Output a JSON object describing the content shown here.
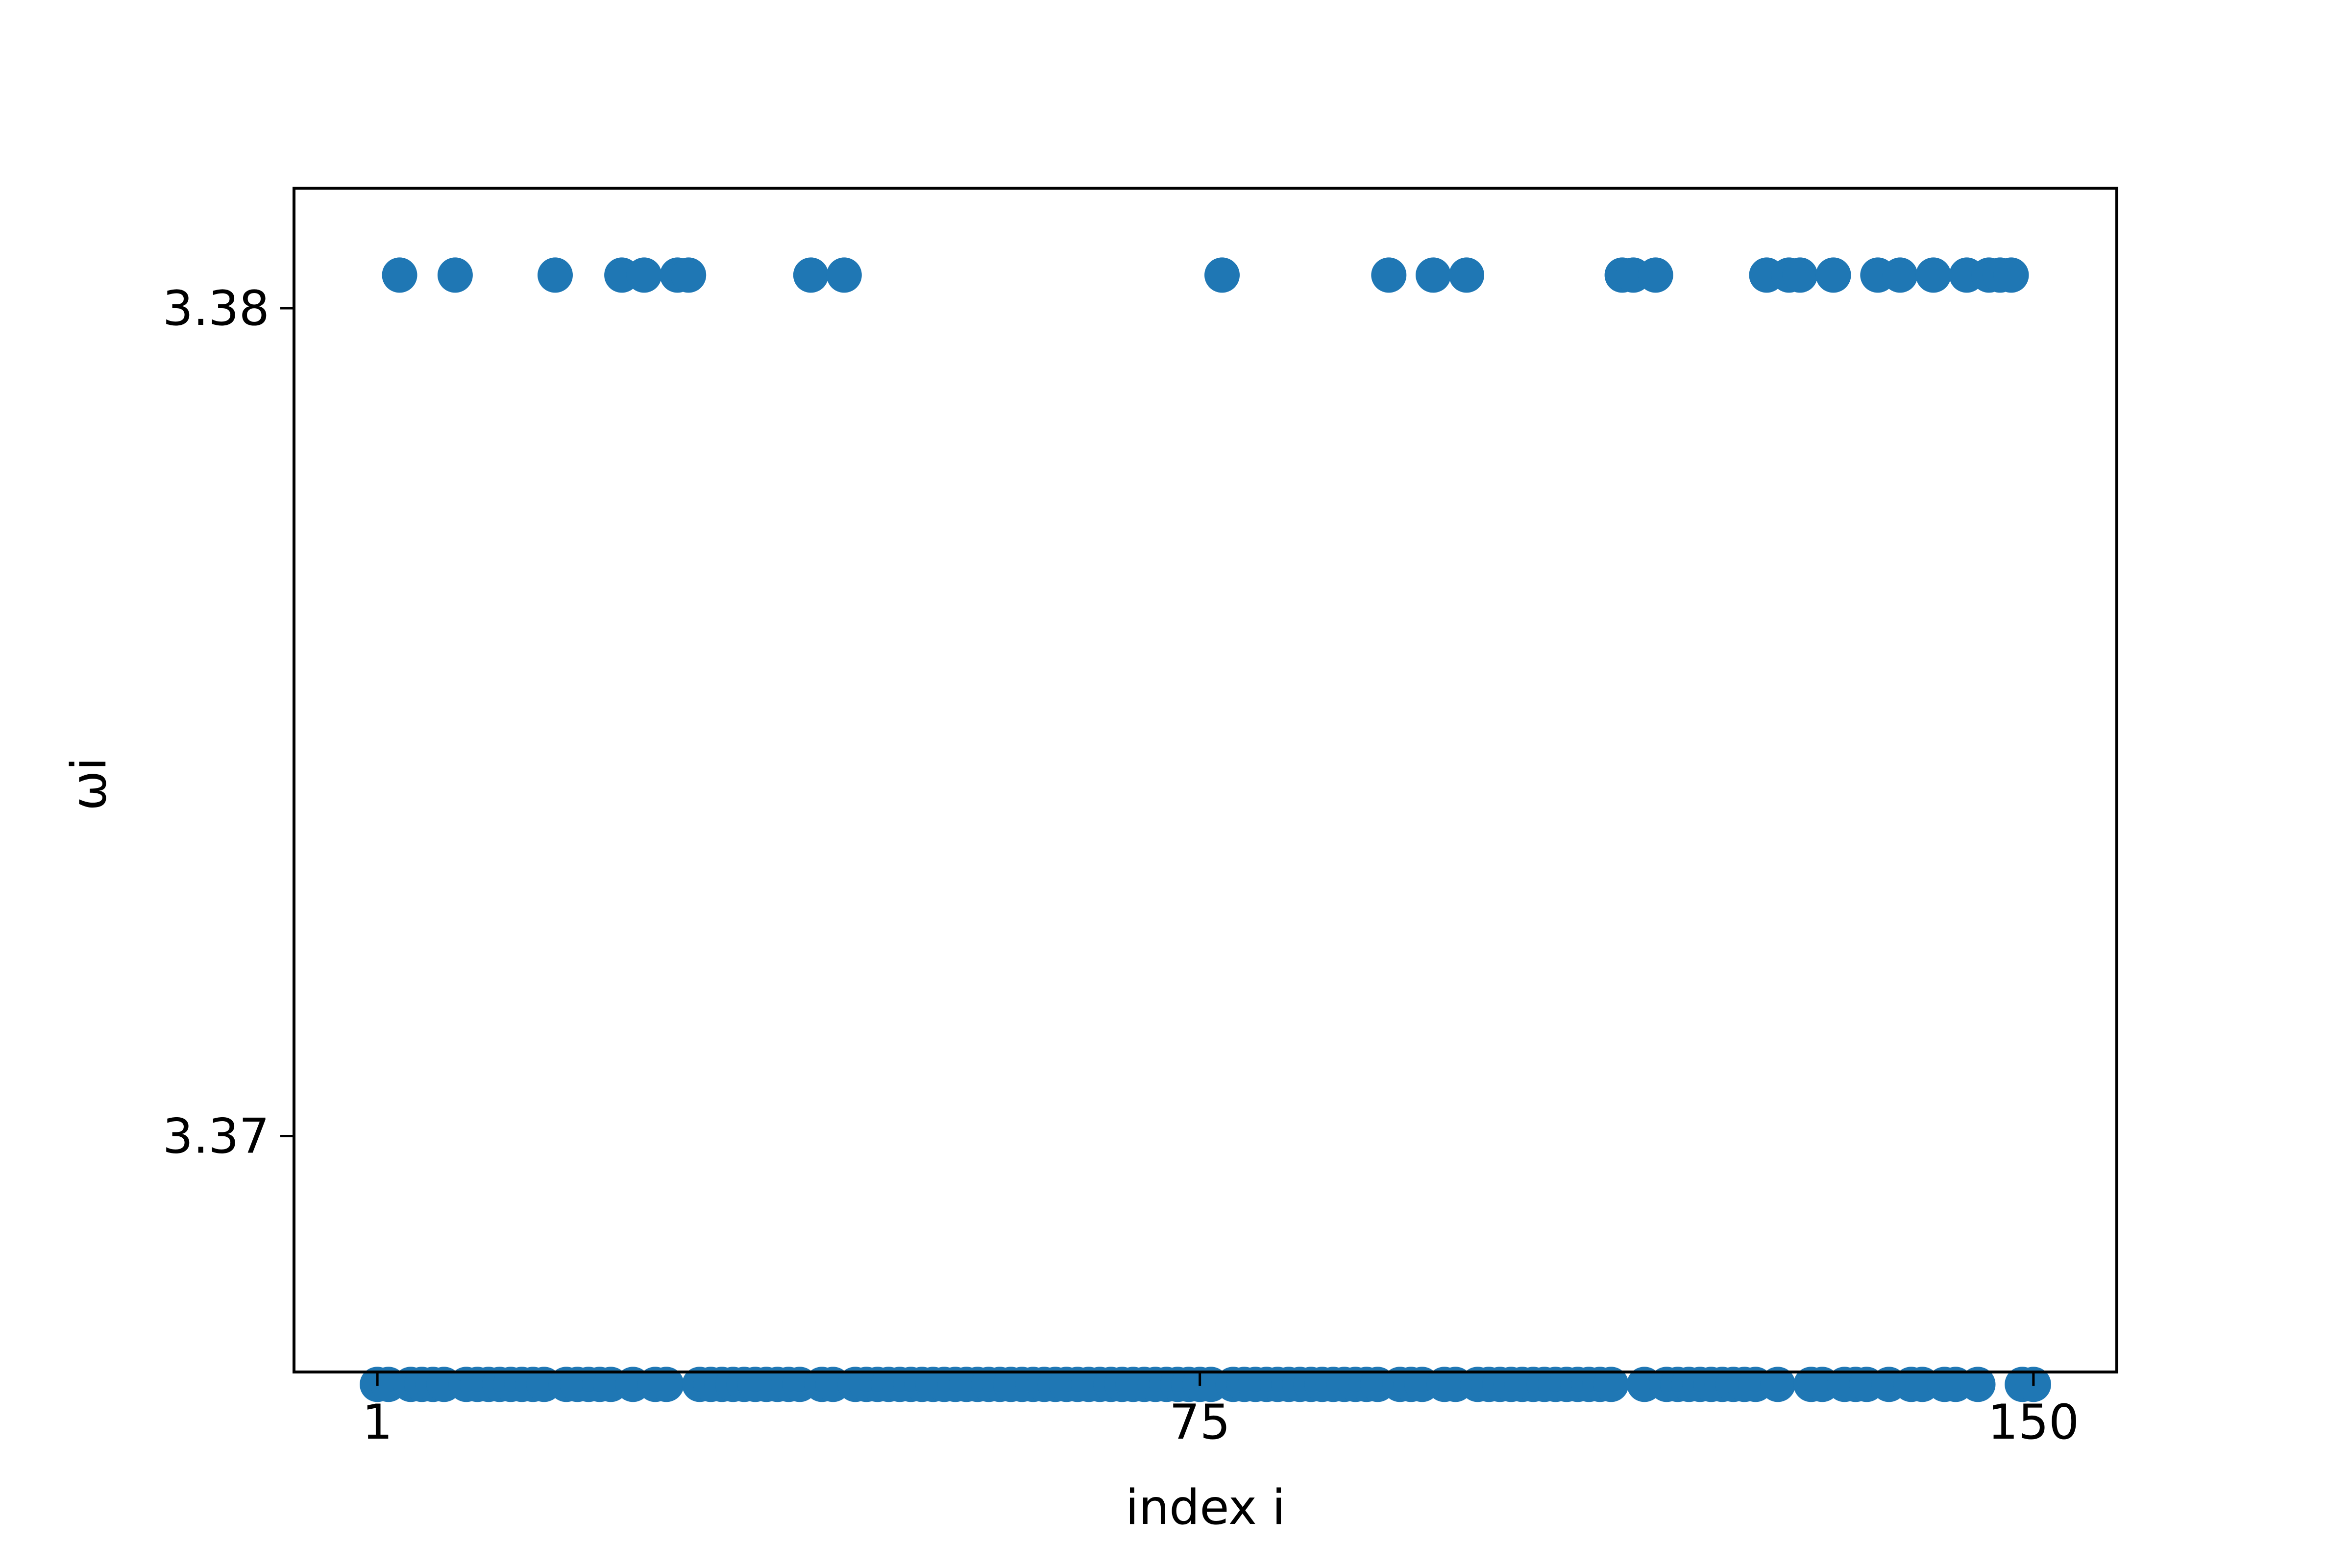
{
  "chart_data": {
    "type": "scatter",
    "title": "",
    "xlabel": "index i",
    "ylabel": "ωi",
    "xlim": [
      -6.5,
      157.5
    ],
    "ylim": [
      3.36715,
      3.38145
    ],
    "x_ticks": [
      1,
      75,
      150
    ],
    "x_tick_labels": [
      "1",
      "75",
      "150"
    ],
    "y_ticks": [
      3.37,
      3.38
    ],
    "y_tick_labels": [
      "3.37",
      "3.38"
    ],
    "grid": false,
    "legend": "none",
    "marker_color": "#1f77b4",
    "high_value": 3.3804,
    "low_value": 3.367,
    "high_indices": [
      3,
      8,
      17,
      23,
      25,
      28,
      29,
      40,
      43,
      77,
      92,
      96,
      99,
      113,
      114,
      116,
      126,
      128,
      129,
      132,
      136,
      138,
      141,
      144,
      146,
      147,
      148
    ],
    "series": [
      {
        "x": [
          1,
          2,
          3,
          4,
          5,
          6,
          7,
          8,
          9,
          10,
          11,
          12,
          13,
          14,
          15,
          16,
          17,
          18,
          19,
          20,
          21,
          22,
          23,
          24,
          25,
          26,
          27,
          28,
          29,
          30,
          31,
          32,
          33,
          34,
          35,
          36,
          37,
          38,
          39,
          40,
          41,
          42,
          43,
          44,
          45,
          46,
          47,
          48,
          49,
          50,
          51,
          52,
          53,
          54,
          55,
          56,
          57,
          58,
          59,
          60,
          61,
          62,
          63,
          64,
          65,
          66,
          67,
          68,
          69,
          70,
          71,
          72,
          73,
          74,
          75,
          76,
          77,
          78,
          79,
          80,
          81,
          82,
          83,
          84,
          85,
          86,
          87,
          88,
          89,
          90,
          91,
          92,
          93,
          94,
          95,
          96,
          97,
          98,
          99,
          100,
          101,
          102,
          103,
          104,
          105,
          106,
          107,
          108,
          109,
          110,
          111,
          112,
          113,
          114,
          115,
          116,
          117,
          118,
          119,
          120,
          121,
          122,
          123,
          124,
          125,
          126,
          127,
          128,
          129,
          130,
          131,
          132,
          133,
          134,
          135,
          136,
          137,
          138,
          139,
          140,
          141,
          142,
          143,
          144,
          145,
          146,
          147,
          148,
          149,
          150
        ]
      }
    ]
  }
}
